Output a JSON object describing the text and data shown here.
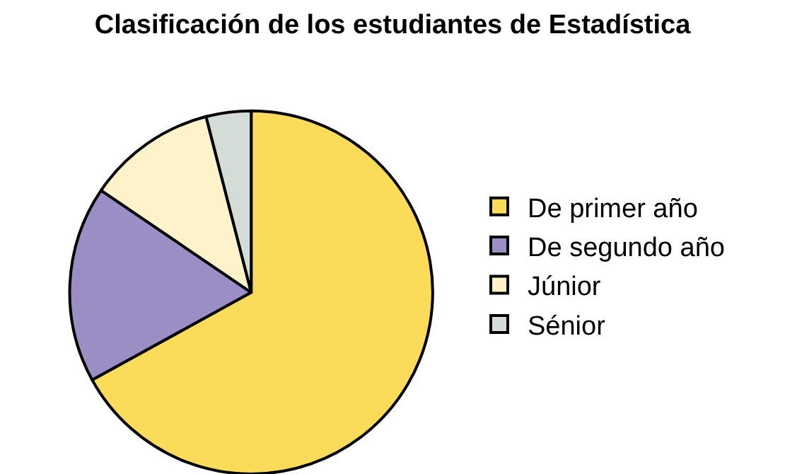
{
  "chart_data": {
    "type": "pie",
    "title": "Clasificación de los estudiantes de Estadística",
    "categories": [
      "De primer año",
      "De segundo año",
      "Júnior",
      "Sénior"
    ],
    "values": [
      67,
      17.5,
      11.5,
      4
    ],
    "colors": [
      "#fbdb5a",
      "#9b8ec4",
      "#fdf2c9",
      "#d3dcd6"
    ],
    "legend": "right"
  }
}
